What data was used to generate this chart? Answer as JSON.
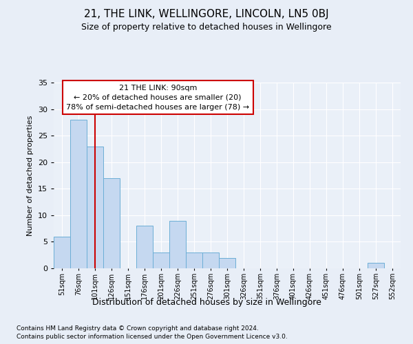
{
  "title1": "21, THE LINK, WELLINGORE, LINCOLN, LN5 0BJ",
  "title2": "Size of property relative to detached houses in Wellingore",
  "xlabel": "Distribution of detached houses by size in Wellingore",
  "ylabel": "Number of detached properties",
  "bar_labels": [
    "51sqm",
    "76sqm",
    "101sqm",
    "126sqm",
    "151sqm",
    "176sqm",
    "201sqm",
    "226sqm",
    "251sqm",
    "276sqm",
    "301sqm",
    "326sqm",
    "351sqm",
    "376sqm",
    "401sqm",
    "426sqm",
    "451sqm",
    "476sqm",
    "501sqm",
    "527sqm",
    "552sqm"
  ],
  "values": [
    6,
    28,
    23,
    17,
    0,
    8,
    3,
    9,
    3,
    3,
    2,
    0,
    0,
    0,
    0,
    0,
    0,
    0,
    0,
    1,
    0
  ],
  "bar_color": "#c5d8f0",
  "bar_edge_color": "#6baed6",
  "vline_x": 2.0,
  "vline_color": "#cc0000",
  "annotation_text": "21 THE LINK: 90sqm\n← 20% of detached houses are smaller (20)\n78% of semi-detached houses are larger (78) →",
  "annotation_box_color": "#ffffff",
  "annotation_box_edge": "#cc0000",
  "bg_color": "#e8eef7",
  "plot_bg_color": "#eaf0f8",
  "footer1": "Contains HM Land Registry data © Crown copyright and database right 2024.",
  "footer2": "Contains public sector information licensed under the Open Government Licence v3.0.",
  "ylim": [
    0,
    35
  ],
  "yticks": [
    0,
    5,
    10,
    15,
    20,
    25,
    30,
    35
  ]
}
